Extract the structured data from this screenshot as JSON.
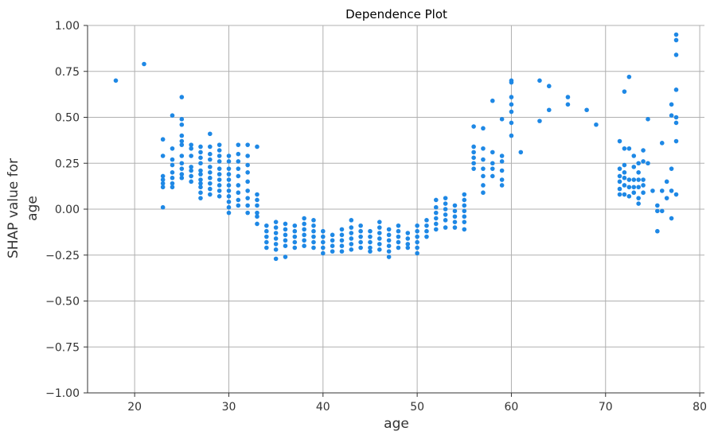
{
  "chart_data": {
    "type": "scatter",
    "title": "Dependence Plot",
    "xlabel": "age",
    "ylabel_lines": [
      "SHAP value for",
      "age"
    ],
    "xlim": [
      15,
      80.5
    ],
    "ylim": [
      -1.0,
      1.0
    ],
    "x_ticks": [
      20,
      30,
      40,
      50,
      60,
      70,
      80
    ],
    "x_tick_labels": [
      "20",
      "30",
      "40",
      "50",
      "60",
      "70",
      "80"
    ],
    "y_ticks": [
      -1.0,
      -0.75,
      -0.5,
      -0.25,
      0.0,
      0.25,
      0.5,
      0.75,
      1.0
    ],
    "y_tick_labels": [
      "−1.00",
      "−0.75",
      "−0.50",
      "−0.25",
      "0.00",
      "0.25",
      "0.50",
      "0.75",
      "1.00"
    ],
    "grid": true,
    "point_color": "#1e88e5",
    "points": [
      [
        18,
        0.7
      ],
      [
        21,
        0.79
      ],
      [
        23,
        0.38
      ],
      [
        23,
        0.29
      ],
      [
        23,
        0.18
      ],
      [
        23,
        0.16
      ],
      [
        23,
        0.14
      ],
      [
        23,
        0.12
      ],
      [
        23,
        0.01
      ],
      [
        24,
        0.51
      ],
      [
        24,
        0.33
      ],
      [
        24,
        0.27
      ],
      [
        24,
        0.24
      ],
      [
        24,
        0.2
      ],
      [
        24,
        0.17
      ],
      [
        24,
        0.14
      ],
      [
        24,
        0.12
      ],
      [
        25,
        0.61
      ],
      [
        25,
        0.49
      ],
      [
        25,
        0.46
      ],
      [
        25,
        0.4
      ],
      [
        25,
        0.37
      ],
      [
        25,
        0.35
      ],
      [
        25,
        0.29
      ],
      [
        25,
        0.25
      ],
      [
        25,
        0.22
      ],
      [
        25,
        0.19
      ],
      [
        25,
        0.17
      ],
      [
        26,
        0.35
      ],
      [
        26,
        0.33
      ],
      [
        26,
        0.29
      ],
      [
        26,
        0.23
      ],
      [
        26,
        0.21
      ],
      [
        26,
        0.18
      ],
      [
        26,
        0.15
      ],
      [
        27,
        0.34
      ],
      [
        27,
        0.31
      ],
      [
        27,
        0.28
      ],
      [
        27,
        0.25
      ],
      [
        27,
        0.21
      ],
      [
        27,
        0.19
      ],
      [
        27,
        0.16
      ],
      [
        27,
        0.14
      ],
      [
        27,
        0.12
      ],
      [
        27,
        0.09
      ],
      [
        27,
        0.06
      ],
      [
        28,
        0.41
      ],
      [
        28,
        0.34
      ],
      [
        28,
        0.3
      ],
      [
        28,
        0.27
      ],
      [
        28,
        0.23
      ],
      [
        28,
        0.2
      ],
      [
        28,
        0.17
      ],
      [
        28,
        0.14
      ],
      [
        28,
        0.11
      ],
      [
        28,
        0.08
      ],
      [
        29,
        0.35
      ],
      [
        29,
        0.32
      ],
      [
        29,
        0.29
      ],
      [
        29,
        0.26
      ],
      [
        29,
        0.22
      ],
      [
        29,
        0.19
      ],
      [
        29,
        0.16
      ],
      [
        29,
        0.13
      ],
      [
        29,
        0.1
      ],
      [
        29,
        0.07
      ],
      [
        30,
        0.29
      ],
      [
        30,
        0.26
      ],
      [
        30,
        0.22
      ],
      [
        30,
        0.19
      ],
      [
        30,
        0.16
      ],
      [
        30,
        0.13
      ],
      [
        30,
        0.1
      ],
      [
        30,
        0.07
      ],
      [
        30,
        0.04
      ],
      [
        30,
        0.01
      ],
      [
        30,
        -0.02
      ],
      [
        31,
        0.35
      ],
      [
        31,
        0.3
      ],
      [
        31,
        0.26
      ],
      [
        31,
        0.22
      ],
      [
        31,
        0.18
      ],
      [
        31,
        0.13
      ],
      [
        31,
        0.09
      ],
      [
        31,
        0.05
      ],
      [
        31,
        0.02
      ],
      [
        32,
        0.35
      ],
      [
        32,
        0.29
      ],
      [
        32,
        0.24
      ],
      [
        32,
        0.2
      ],
      [
        32,
        0.15
      ],
      [
        32,
        0.1
      ],
      [
        32,
        0.06
      ],
      [
        32,
        0.02
      ],
      [
        32,
        -0.02
      ],
      [
        33,
        0.34
      ],
      [
        33,
        0.08
      ],
      [
        33,
        0.05
      ],
      [
        33,
        0.02
      ],
      [
        33,
        -0.02
      ],
      [
        33,
        -0.04
      ],
      [
        33,
        -0.08
      ],
      [
        34,
        -0.09
      ],
      [
        34,
        -0.12
      ],
      [
        34,
        -0.15
      ],
      [
        34,
        -0.18
      ],
      [
        34,
        -0.21
      ],
      [
        35,
        -0.07
      ],
      [
        35,
        -0.1
      ],
      [
        35,
        -0.13
      ],
      [
        35,
        -0.16
      ],
      [
        35,
        -0.19
      ],
      [
        35,
        -0.22
      ],
      [
        35,
        -0.27
      ],
      [
        36,
        -0.08
      ],
      [
        36,
        -0.11
      ],
      [
        36,
        -0.14
      ],
      [
        36,
        -0.17
      ],
      [
        36,
        -0.2
      ],
      [
        36,
        -0.26
      ],
      [
        37,
        -0.09
      ],
      [
        37,
        -0.12
      ],
      [
        37,
        -0.15
      ],
      [
        37,
        -0.18
      ],
      [
        37,
        -0.21
      ],
      [
        38,
        -0.05
      ],
      [
        38,
        -0.08
      ],
      [
        38,
        -0.11
      ],
      [
        38,
        -0.14
      ],
      [
        38,
        -0.17
      ],
      [
        38,
        -0.2
      ],
      [
        39,
        -0.06
      ],
      [
        39,
        -0.09
      ],
      [
        39,
        -0.12
      ],
      [
        39,
        -0.15
      ],
      [
        39,
        -0.18
      ],
      [
        39,
        -0.21
      ],
      [
        40,
        -0.12
      ],
      [
        40,
        -0.15
      ],
      [
        40,
        -0.18
      ],
      [
        40,
        -0.21
      ],
      [
        40,
        -0.24
      ],
      [
        41,
        -0.14
      ],
      [
        41,
        -0.17
      ],
      [
        41,
        -0.2
      ],
      [
        41,
        -0.23
      ],
      [
        42,
        -0.11
      ],
      [
        42,
        -0.14
      ],
      [
        42,
        -0.17
      ],
      [
        42,
        -0.2
      ],
      [
        42,
        -0.23
      ],
      [
        43,
        -0.06
      ],
      [
        43,
        -0.1
      ],
      [
        43,
        -0.13
      ],
      [
        43,
        -0.16
      ],
      [
        43,
        -0.19
      ],
      [
        43,
        -0.22
      ],
      [
        44,
        -0.09
      ],
      [
        44,
        -0.12
      ],
      [
        44,
        -0.15
      ],
      [
        44,
        -0.18
      ],
      [
        44,
        -0.21
      ],
      [
        45,
        -0.12
      ],
      [
        45,
        -0.15
      ],
      [
        45,
        -0.18
      ],
      [
        45,
        -0.21
      ],
      [
        45,
        -0.23
      ],
      [
        46,
        -0.07
      ],
      [
        46,
        -0.1
      ],
      [
        46,
        -0.13
      ],
      [
        46,
        -0.16
      ],
      [
        46,
        -0.19
      ],
      [
        46,
        -0.22
      ],
      [
        47,
        -0.11
      ],
      [
        47,
        -0.14
      ],
      [
        47,
        -0.17
      ],
      [
        47,
        -0.2
      ],
      [
        47,
        -0.23
      ],
      [
        47,
        -0.26
      ],
      [
        48,
        -0.09
      ],
      [
        48,
        -0.12
      ],
      [
        48,
        -0.15
      ],
      [
        48,
        -0.18
      ],
      [
        48,
        -0.21
      ],
      [
        49,
        -0.13
      ],
      [
        49,
        -0.16
      ],
      [
        49,
        -0.19
      ],
      [
        49,
        -0.21
      ],
      [
        50,
        -0.09
      ],
      [
        50,
        -0.12
      ],
      [
        50,
        -0.15
      ],
      [
        50,
        -0.18
      ],
      [
        50,
        -0.21
      ],
      [
        50,
        -0.24
      ],
      [
        51,
        -0.06
      ],
      [
        51,
        -0.09
      ],
      [
        51,
        -0.12
      ],
      [
        51,
        -0.15
      ],
      [
        52,
        0.05
      ],
      [
        52,
        0.01
      ],
      [
        52,
        -0.02
      ],
      [
        52,
        -0.05
      ],
      [
        52,
        -0.08
      ],
      [
        52,
        -0.11
      ],
      [
        53,
        0.06
      ],
      [
        53,
        0.03
      ],
      [
        53,
        0.0
      ],
      [
        53,
        -0.03
      ],
      [
        53,
        -0.06
      ],
      [
        53,
        -0.1
      ],
      [
        54,
        0.02
      ],
      [
        54,
        -0.01
      ],
      [
        54,
        -0.04
      ],
      [
        54,
        -0.07
      ],
      [
        54,
        -0.1
      ],
      [
        55,
        0.08
      ],
      [
        55,
        0.05
      ],
      [
        55,
        0.02
      ],
      [
        55,
        -0.01
      ],
      [
        55,
        -0.04
      ],
      [
        55,
        -0.07
      ],
      [
        55,
        -0.11
      ],
      [
        56,
        0.45
      ],
      [
        56,
        0.34
      ],
      [
        56,
        0.31
      ],
      [
        56,
        0.28
      ],
      [
        56,
        0.25
      ],
      [
        56,
        0.22
      ],
      [
        57,
        0.44
      ],
      [
        57,
        0.33
      ],
      [
        57,
        0.27
      ],
      [
        57,
        0.22
      ],
      [
        57,
        0.18
      ],
      [
        57,
        0.13
      ],
      [
        57,
        0.09
      ],
      [
        58,
        0.59
      ],
      [
        58,
        0.31
      ],
      [
        58,
        0.25
      ],
      [
        58,
        0.22
      ],
      [
        58,
        0.18
      ],
      [
        59,
        0.49
      ],
      [
        59,
        0.29
      ],
      [
        59,
        0.26
      ],
      [
        59,
        0.21
      ],
      [
        59,
        0.16
      ],
      [
        59,
        0.13
      ],
      [
        60,
        0.7
      ],
      [
        60,
        0.69
      ],
      [
        60,
        0.61
      ],
      [
        60,
        0.57
      ],
      [
        60,
        0.53
      ],
      [
        60,
        0.47
      ],
      [
        60,
        0.4
      ],
      [
        61,
        0.31
      ],
      [
        63,
        0.7
      ],
      [
        63,
        0.48
      ],
      [
        64,
        0.67
      ],
      [
        64,
        0.54
      ],
      [
        66,
        0.61
      ],
      [
        66,
        0.57
      ],
      [
        68,
        0.54
      ],
      [
        69,
        0.46
      ],
      [
        71.5,
        0.37
      ],
      [
        71.5,
        0.22
      ],
      [
        71.5,
        0.18
      ],
      [
        71.5,
        0.15
      ],
      [
        71.5,
        0.11
      ],
      [
        71.5,
        0.08
      ],
      [
        72,
        0.64
      ],
      [
        72,
        0.33
      ],
      [
        72,
        0.24
      ],
      [
        72,
        0.2
      ],
      [
        72,
        0.17
      ],
      [
        72,
        0.13
      ],
      [
        72,
        0.08
      ],
      [
        72.5,
        0.72
      ],
      [
        72.5,
        0.33
      ],
      [
        72.5,
        0.16
      ],
      [
        72.5,
        0.12
      ],
      [
        72.5,
        0.07
      ],
      [
        73,
        0.29
      ],
      [
        73,
        0.23
      ],
      [
        73,
        0.16
      ],
      [
        73,
        0.12
      ],
      [
        73,
        0.09
      ],
      [
        73.5,
        0.25
      ],
      [
        73.5,
        0.2
      ],
      [
        73.5,
        0.16
      ],
      [
        73.5,
        0.12
      ],
      [
        73.5,
        0.06
      ],
      [
        73.5,
        0.03
      ],
      [
        74,
        0.32
      ],
      [
        74,
        0.26
      ],
      [
        74,
        0.16
      ],
      [
        74,
        0.13
      ],
      [
        74,
        0.09
      ],
      [
        74.5,
        0.25
      ],
      [
        74.5,
        0.49
      ],
      [
        75,
        0.1
      ],
      [
        75.5,
        0.02
      ],
      [
        75.5,
        -0.01
      ],
      [
        75.5,
        -0.12
      ],
      [
        76,
        0.36
      ],
      [
        76,
        0.1
      ],
      [
        76,
        -0.01
      ],
      [
        76.5,
        0.15
      ],
      [
        76.5,
        0.06
      ],
      [
        77,
        0.57
      ],
      [
        77,
        0.51
      ],
      [
        77,
        0.22
      ],
      [
        77,
        0.1
      ],
      [
        77,
        -0.05
      ],
      [
        77.5,
        0.95
      ],
      [
        77.5,
        0.92
      ],
      [
        77.5,
        0.84
      ],
      [
        77.5,
        0.65
      ],
      [
        77.5,
        0.5
      ],
      [
        77.5,
        0.47
      ],
      [
        77.5,
        0.37
      ],
      [
        77.5,
        0.08
      ]
    ]
  }
}
